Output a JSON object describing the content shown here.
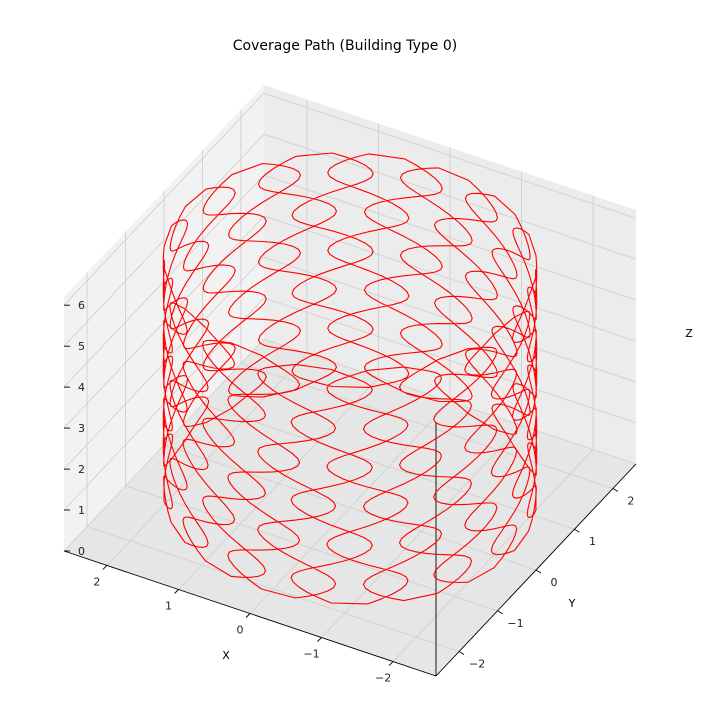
{
  "chart_data": {
    "type": "line",
    "projection": "3d",
    "title": "Coverage Path (Building Type 0)",
    "xlabel": "X",
    "ylabel": "Y",
    "zlabel": "Z",
    "xlim": [
      -2.6,
      2.6
    ],
    "ylim": [
      -2.6,
      2.6
    ],
    "zlim": [
      0,
      6.2
    ],
    "xticks": [
      -2,
      -1,
      0,
      1,
      2
    ],
    "yticks": [
      -2,
      -1,
      0,
      1,
      2
    ],
    "zticks": [
      0,
      1,
      2,
      3,
      4,
      5,
      6
    ],
    "xtick_labels": [
      "−2",
      "−1",
      "0",
      "1",
      "2"
    ],
    "ytick_labels": [
      "−2",
      "−1",
      "0",
      "1",
      "2"
    ],
    "ztick_labels": [
      "0",
      "1",
      "2",
      "3",
      "4",
      "5",
      "6"
    ],
    "grid": true,
    "series": [
      {
        "color": "#ff0000",
        "path_model": "vertical-sweep-cylinder",
        "radius": 2.3,
        "z_min": 0.3,
        "z_max": 6.0,
        "sweep_count": 32,
        "lateral_wobble": 0.22,
        "wobbles_per_sweep": 6
      }
    ]
  }
}
